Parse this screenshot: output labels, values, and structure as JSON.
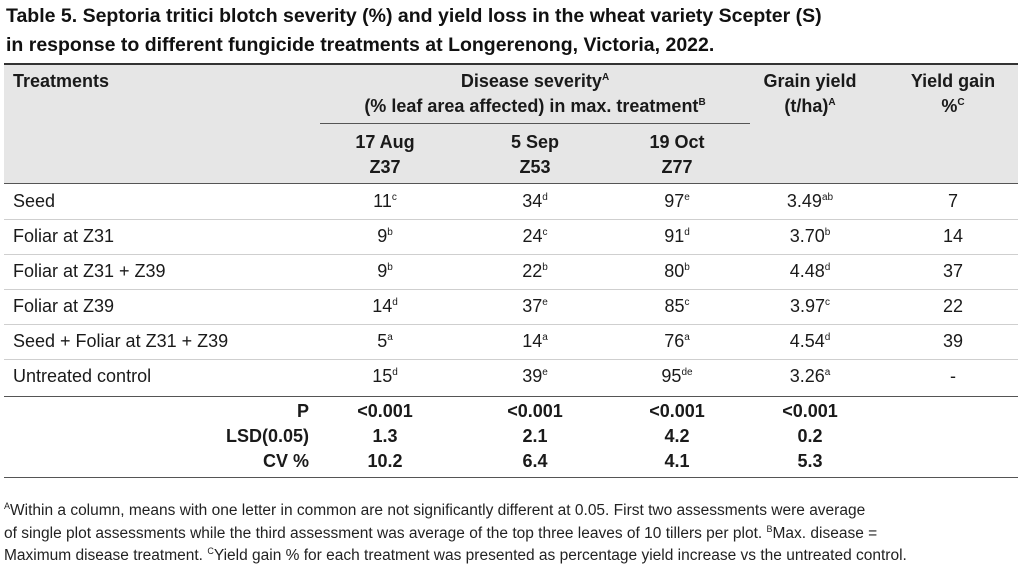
{
  "title": {
    "line1": "Table 5. Septoria tritici blotch severity (%) and yield loss in the wheat variety Scepter (S)",
    "line2": "in response to different fungicide treatments at Longerenong, Victoria, 2022."
  },
  "header": {
    "treatments": "Treatments",
    "severity_line1": "Disease severity",
    "severity_line1_sup": "A",
    "severity_line2": "(% leaf area affected) in max. treatment",
    "severity_line2_sup": "B",
    "grain_line1": "Grain yield",
    "grain_line2": "(t/ha)",
    "grain_line2_sup": "A",
    "gain_line1": "Yield gain",
    "gain_line2": "%",
    "gain_line2_sup": "C",
    "dates": [
      {
        "date": "17 Aug",
        "stage": "Z37"
      },
      {
        "date": "5 Sep",
        "stage": "Z53"
      },
      {
        "date": "19 Oct",
        "stage": "Z77"
      }
    ]
  },
  "rows": [
    {
      "treatment": "Seed",
      "s1": "11",
      "s1l": "c",
      "s2": "34",
      "s2l": "d",
      "s3": "97",
      "s3l": "e",
      "yield": "3.49",
      "yieldl": "ab",
      "gain": "7"
    },
    {
      "treatment": "Foliar at Z31",
      "s1": "9",
      "s1l": "b",
      "s2": "24",
      "s2l": "c",
      "s3": "91",
      "s3l": "d",
      "yield": "3.70",
      "yieldl": "b",
      "gain": "14"
    },
    {
      "treatment": "Foliar at Z31 + Z39",
      "s1": "9",
      "s1l": "b",
      "s2": "22",
      "s2l": "b",
      "s3": "80",
      "s3l": "b",
      "yield": "4.48",
      "yieldl": "d",
      "gain": "37"
    },
    {
      "treatment": "Foliar at Z39",
      "s1": "14",
      "s1l": "d",
      "s2": "37",
      "s2l": "e",
      "s3": "85",
      "s3l": "c",
      "yield": "3.97",
      "yieldl": "c",
      "gain": "22"
    },
    {
      "treatment": "Seed + Foliar at Z31 + Z39",
      "s1": "5",
      "s1l": "a",
      "s2": "14",
      "s2l": "a",
      "s3": "76",
      "s3l": "a",
      "yield": "4.54",
      "yieldl": "d",
      "gain": "39"
    },
    {
      "treatment": "Untreated control",
      "s1": "15",
      "s1l": "d",
      "s2": "39",
      "s2l": "e",
      "s3": "95",
      "s3l": "de",
      "yield": "3.26",
      "yieldl": "a",
      "gain": "-"
    }
  ],
  "stats": [
    {
      "label": "P",
      "s1": "<0.001",
      "s2": "<0.001",
      "s3": "<0.001",
      "yield": "<0.001"
    },
    {
      "label": "LSD(0.05)",
      "s1": "1.3",
      "s2": "2.1",
      "s3": "4.2",
      "yield": "0.2"
    },
    {
      "label": "CV %",
      "s1": "10.2",
      "s2": "6.4",
      "s3": "4.1",
      "yield": "5.3"
    }
  ],
  "footnote": {
    "supA": "A",
    "a_text1": "Within a column, means with one letter in common are not significantly different at 0.05. First two assessments were average",
    "a_text2": "of single plot assessments while the third assessment was average of the top three leaves of 10 tillers per plot.",
    "supB": "B",
    "b_text": "Max. disease =",
    "b_text2": "Maximum disease treatment.",
    "supC": "C",
    "c_text": "Yield gain % for each treatment was presented as percentage yield increase vs the untreated control."
  }
}
